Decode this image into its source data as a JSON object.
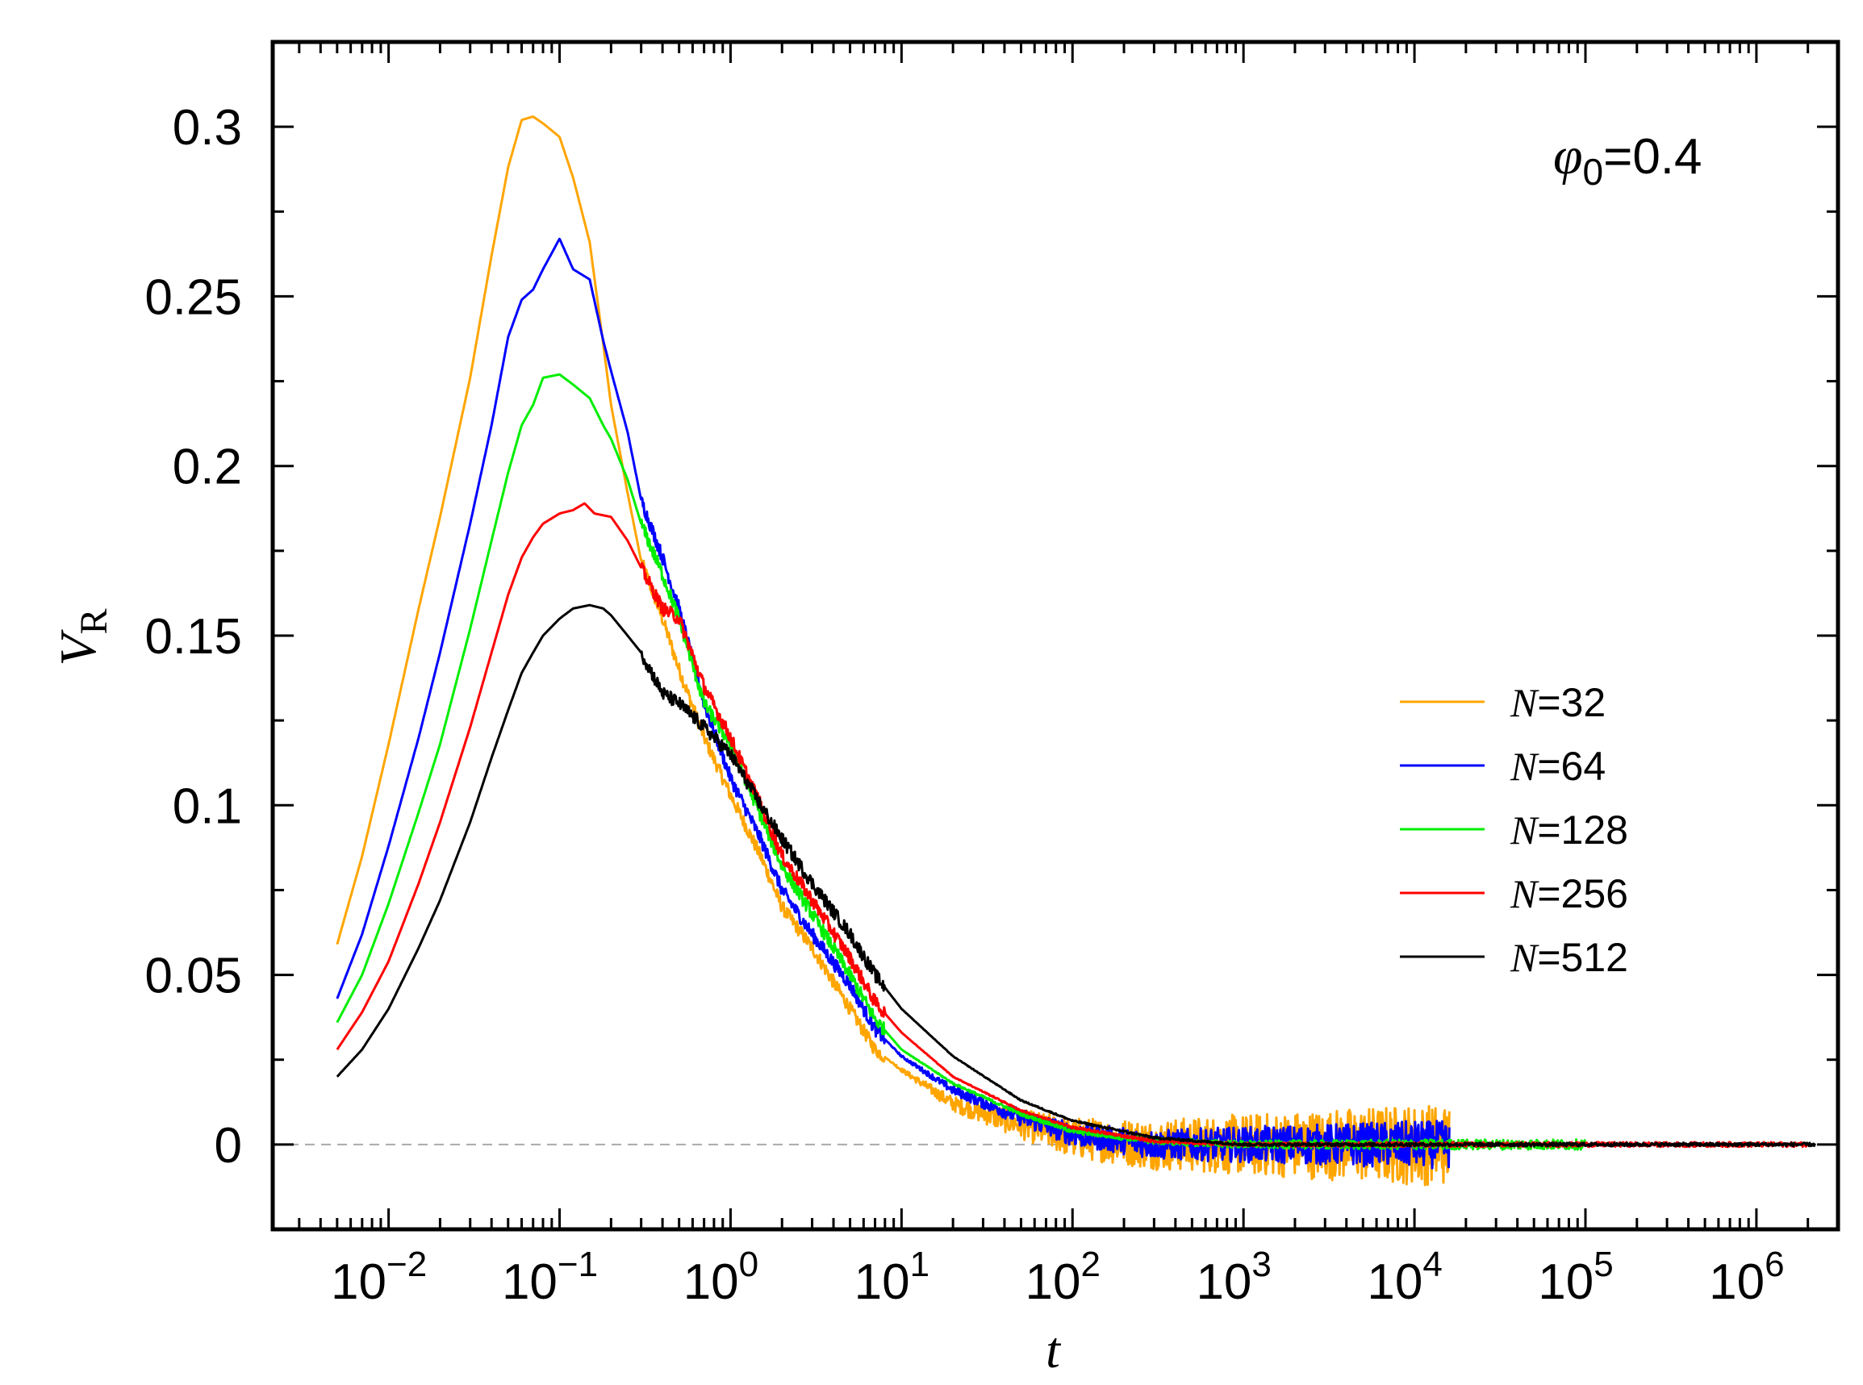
{
  "chart_data": {
    "type": "line",
    "x_scale": "log",
    "xlim": [
      0.0021,
      3000000
    ],
    "ylim": [
      -0.025,
      0.325
    ],
    "xlabel": "t",
    "ylabel": "V",
    "ylabel_subscript": "R",
    "x_ticks": [
      {
        "value": 0.01,
        "base": "10",
        "exp": "−2"
      },
      {
        "value": 0.1,
        "base": "10",
        "exp": "−1"
      },
      {
        "value": 1,
        "base": "10",
        "exp": "0"
      },
      {
        "value": 10,
        "base": "10",
        "exp": "1"
      },
      {
        "value": 100,
        "base": "10",
        "exp": "2"
      },
      {
        "value": 1000,
        "base": "10",
        "exp": "3"
      },
      {
        "value": 10000,
        "base": "10",
        "exp": "4"
      },
      {
        "value": 100000,
        "base": "10",
        "exp": "5"
      },
      {
        "value": 1000000,
        "base": "10",
        "exp": "6"
      }
    ],
    "y_ticks": [
      {
        "value": 0,
        "label": "0"
      },
      {
        "value": 0.05,
        "label": "0.05"
      },
      {
        "value": 0.1,
        "label": "0.1"
      },
      {
        "value": 0.15,
        "label": "0.15"
      },
      {
        "value": 0.2,
        "label": "0.2"
      },
      {
        "value": 0.25,
        "label": "0.25"
      },
      {
        "value": 0.3,
        "label": "0.3"
      }
    ],
    "reference_line": {
      "y": 0,
      "style": "dashed",
      "color": "#aaaaaa"
    },
    "annotation": {
      "symbol": "φ",
      "subscript": "0",
      "text": "=0.4"
    },
    "legend": {
      "position": "center-right"
    },
    "series": [
      {
        "name": "N=32",
        "legend_var": "N",
        "legend_value": "=32",
        "color": "#ffa500",
        "noise": 0.012,
        "noise_end": 16000,
        "points": [
          [
            0.005,
            0.059
          ],
          [
            0.007,
            0.085
          ],
          [
            0.01,
            0.118
          ],
          [
            0.015,
            0.158
          ],
          [
            0.02,
            0.185
          ],
          [
            0.03,
            0.226
          ],
          [
            0.04,
            0.262
          ],
          [
            0.05,
            0.288
          ],
          [
            0.06,
            0.302
          ],
          [
            0.07,
            0.303
          ],
          [
            0.08,
            0.301
          ],
          [
            0.1,
            0.297
          ],
          [
            0.12,
            0.285
          ],
          [
            0.15,
            0.266
          ],
          [
            0.18,
            0.236
          ],
          [
            0.2,
            0.218
          ],
          [
            0.25,
            0.192
          ],
          [
            0.3,
            0.172
          ],
          [
            0.4,
            0.155
          ],
          [
            0.5,
            0.14
          ],
          [
            0.7,
            0.12
          ],
          [
            1.0,
            0.103
          ],
          [
            1.5,
            0.085
          ],
          [
            2.0,
            0.07
          ],
          [
            3.0,
            0.058
          ],
          [
            5.0,
            0.04
          ],
          [
            7.0,
            0.028
          ],
          [
            10.0,
            0.022
          ],
          [
            20.0,
            0.012
          ],
          [
            50.0,
            0.006
          ],
          [
            100.0,
            0.002
          ],
          [
            300.0,
            0.0
          ],
          [
            16000.0,
            0.0
          ]
        ]
      },
      {
        "name": "N=64",
        "legend_var": "N",
        "legend_value": "=64",
        "color": "#0000ff",
        "noise": 0.007,
        "noise_end": 16000,
        "points": [
          [
            0.005,
            0.043
          ],
          [
            0.007,
            0.062
          ],
          [
            0.01,
            0.088
          ],
          [
            0.015,
            0.12
          ],
          [
            0.02,
            0.145
          ],
          [
            0.03,
            0.183
          ],
          [
            0.04,
            0.212
          ],
          [
            0.05,
            0.238
          ],
          [
            0.06,
            0.249
          ],
          [
            0.07,
            0.252
          ],
          [
            0.08,
            0.258
          ],
          [
            0.1,
            0.267
          ],
          [
            0.12,
            0.258
          ],
          [
            0.15,
            0.255
          ],
          [
            0.18,
            0.237
          ],
          [
            0.2,
            0.228
          ],
          [
            0.25,
            0.21
          ],
          [
            0.3,
            0.19
          ],
          [
            0.4,
            0.173
          ],
          [
            0.5,
            0.158
          ],
          [
            0.7,
            0.13
          ],
          [
            1.0,
            0.108
          ],
          [
            1.5,
            0.09
          ],
          [
            2.0,
            0.075
          ],
          [
            3.0,
            0.062
          ],
          [
            5.0,
            0.047
          ],
          [
            7.0,
            0.034
          ],
          [
            10.0,
            0.026
          ],
          [
            20.0,
            0.016
          ],
          [
            50.0,
            0.008
          ],
          [
            100.0,
            0.003
          ],
          [
            300.0,
            0.0
          ],
          [
            16000.0,
            0.0
          ]
        ]
      },
      {
        "name": "N=128",
        "legend_var": "N",
        "legend_value": "=128",
        "color": "#00ee00",
        "noise": 0.0015,
        "noise_end": 100000,
        "points": [
          [
            0.005,
            0.036
          ],
          [
            0.007,
            0.05
          ],
          [
            0.01,
            0.071
          ],
          [
            0.015,
            0.098
          ],
          [
            0.02,
            0.118
          ],
          [
            0.03,
            0.152
          ],
          [
            0.04,
            0.178
          ],
          [
            0.05,
            0.198
          ],
          [
            0.06,
            0.212
          ],
          [
            0.07,
            0.218
          ],
          [
            0.08,
            0.226
          ],
          [
            0.1,
            0.227
          ],
          [
            0.12,
            0.224
          ],
          [
            0.15,
            0.22
          ],
          [
            0.18,
            0.212
          ],
          [
            0.2,
            0.208
          ],
          [
            0.25,
            0.196
          ],
          [
            0.3,
            0.183
          ],
          [
            0.4,
            0.168
          ],
          [
            0.5,
            0.155
          ],
          [
            0.7,
            0.13
          ],
          [
            1.0,
            0.118
          ],
          [
            1.5,
            0.097
          ],
          [
            2.0,
            0.082
          ],
          [
            3.0,
            0.068
          ],
          [
            5.0,
            0.05
          ],
          [
            7.0,
            0.037
          ],
          [
            10.0,
            0.028
          ],
          [
            20.0,
            0.018
          ],
          [
            50.0,
            0.009
          ],
          [
            100.0,
            0.004
          ],
          [
            300.0,
            0.001
          ],
          [
            1000.0,
            0.0
          ],
          [
            100000.0,
            0.0
          ]
        ]
      },
      {
        "name": "N=256",
        "legend_var": "N",
        "legend_value": "=256",
        "color": "#ff0000",
        "noise": 0.0007,
        "noise_end": 2000000,
        "points": [
          [
            0.005,
            0.028
          ],
          [
            0.007,
            0.039
          ],
          [
            0.01,
            0.054
          ],
          [
            0.015,
            0.077
          ],
          [
            0.02,
            0.095
          ],
          [
            0.03,
            0.123
          ],
          [
            0.04,
            0.145
          ],
          [
            0.05,
            0.162
          ],
          [
            0.06,
            0.173
          ],
          [
            0.07,
            0.179
          ],
          [
            0.08,
            0.183
          ],
          [
            0.1,
            0.186
          ],
          [
            0.12,
            0.187
          ],
          [
            0.14,
            0.189
          ],
          [
            0.16,
            0.186
          ],
          [
            0.2,
            0.185
          ],
          [
            0.25,
            0.178
          ],
          [
            0.3,
            0.17
          ],
          [
            0.4,
            0.158
          ],
          [
            0.5,
            0.155
          ],
          [
            0.7,
            0.135
          ],
          [
            1.0,
            0.12
          ],
          [
            1.5,
            0.1
          ],
          [
            2.0,
            0.085
          ],
          [
            3.0,
            0.072
          ],
          [
            5.0,
            0.055
          ],
          [
            7.0,
            0.042
          ],
          [
            10.0,
            0.033
          ],
          [
            20.0,
            0.02
          ],
          [
            50.0,
            0.01
          ],
          [
            100.0,
            0.005
          ],
          [
            300.0,
            0.001
          ],
          [
            1000.0,
            0.0
          ],
          [
            2000000.0,
            0.0
          ]
        ]
      },
      {
        "name": "N=512",
        "legend_var": "N",
        "legend_value": "=512",
        "color": "#000000",
        "noise": 0.0005,
        "noise_end": 2200000,
        "points": [
          [
            0.005,
            0.02
          ],
          [
            0.007,
            0.028
          ],
          [
            0.01,
            0.04
          ],
          [
            0.015,
            0.058
          ],
          [
            0.02,
            0.072
          ],
          [
            0.03,
            0.095
          ],
          [
            0.04,
            0.114
          ],
          [
            0.05,
            0.128
          ],
          [
            0.06,
            0.139
          ],
          [
            0.07,
            0.145
          ],
          [
            0.08,
            0.15
          ],
          [
            0.1,
            0.155
          ],
          [
            0.12,
            0.158
          ],
          [
            0.15,
            0.159
          ],
          [
            0.18,
            0.158
          ],
          [
            0.2,
            0.156
          ],
          [
            0.25,
            0.15
          ],
          [
            0.3,
            0.145
          ],
          [
            0.4,
            0.133
          ],
          [
            0.5,
            0.13
          ],
          [
            0.7,
            0.123
          ],
          [
            1.0,
            0.115
          ],
          [
            1.5,
            0.1
          ],
          [
            2.0,
            0.09
          ],
          [
            3.0,
            0.077
          ],
          [
            5.0,
            0.062
          ],
          [
            7.0,
            0.05
          ],
          [
            10.0,
            0.04
          ],
          [
            20.0,
            0.026
          ],
          [
            50.0,
            0.013
          ],
          [
            100.0,
            0.007
          ],
          [
            300.0,
            0.002
          ],
          [
            1000.0,
            0.0
          ],
          [
            2200000.0,
            0.0
          ]
        ]
      }
    ]
  }
}
